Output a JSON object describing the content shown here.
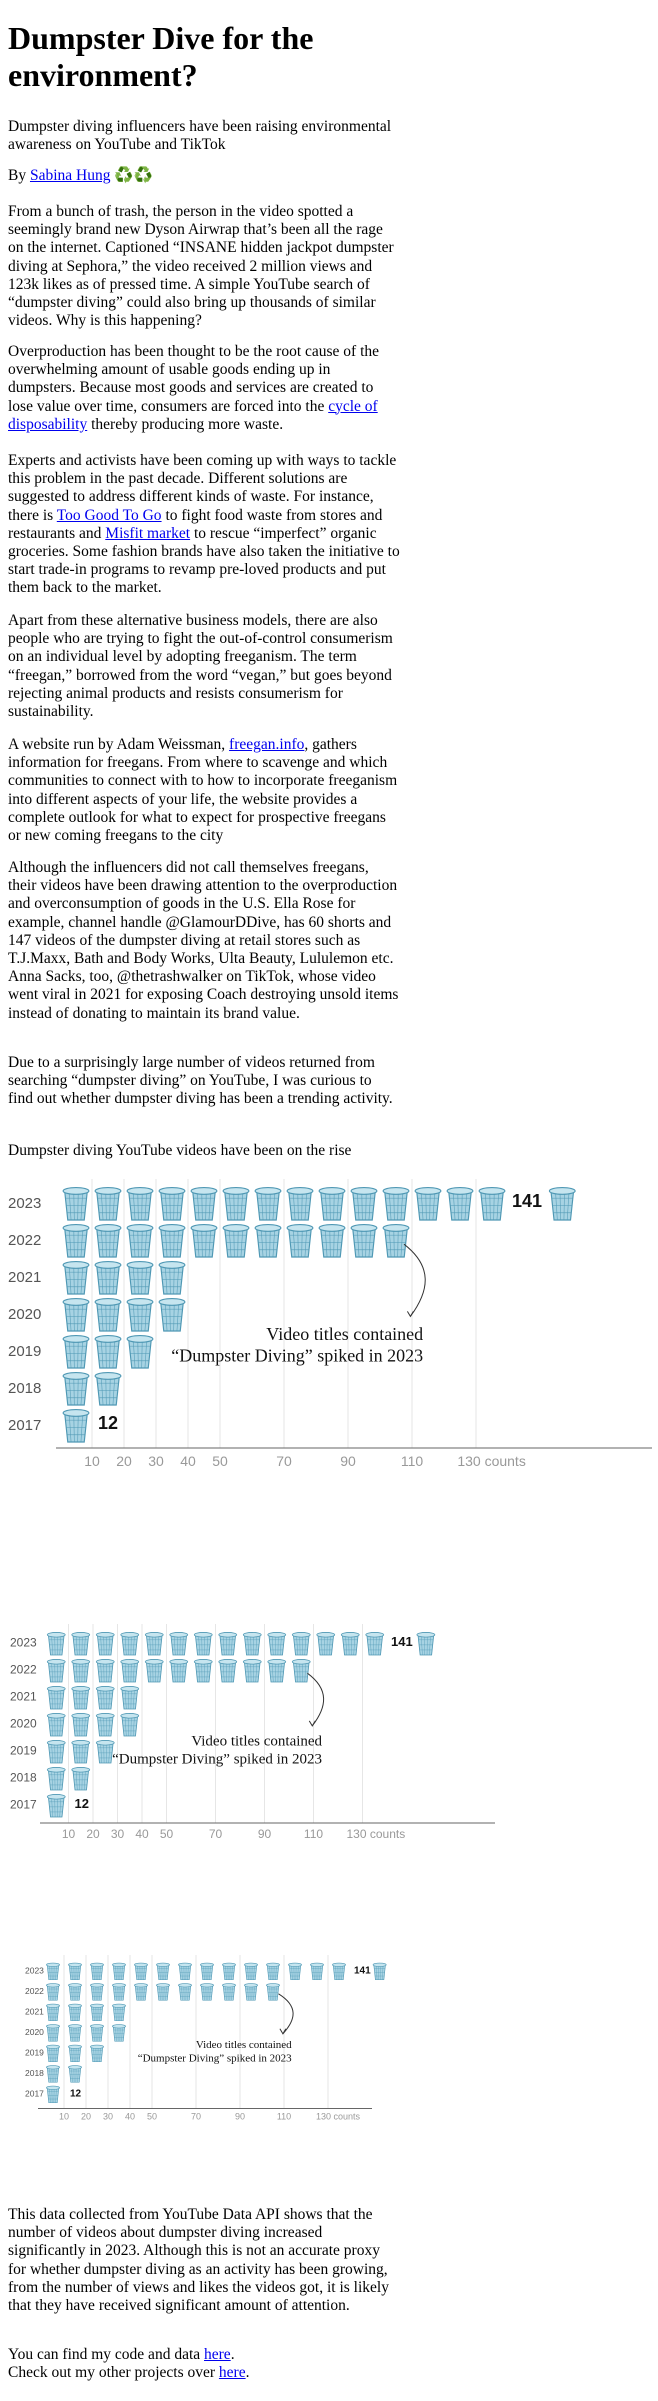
{
  "article": {
    "title": "Dumpster Dive for the environment?",
    "subtitle": "Dumpster diving influencers have been raising environmental awareness on YouTube and TikTok",
    "byline_prefix": "By",
    "author": "Sabina Hung",
    "author_emoji": "♻️♻️",
    "p1": "From a bunch of trash, the person in the video spotted a seemingly brand new Dyson Airwrap that’s been all the rage on the internet. Captioned “INSANE hidden jackpot dumpster diving at Sephora,” the video received 2 million views and 123k likes as of pressed time. A simple YouTube search of “dumpster diving” could also bring up thousands of similar videos. Why is this happening?",
    "p2_a": "Overproduction has been thought to be the root cause of the overwhelming amount of usable goods ending up in dumpsters. Because most goods and services are created to lose value over time, consumers are forced into the ",
    "p2_link": "cycle of disposability",
    "p2_b": " thereby producing more waste.",
    "p3_a": "Experts and activists have been coming up with ways to tackle this problem in the past decade. Different solutions are suggested to address different kinds of waste. For instance, there is ",
    "p3_link1": "Too Good To Go",
    "p3_b": " to fight food waste from stores and restaurants and ",
    "p3_link2": "Misfit market",
    "p3_c": " to rescue “imperfect” organic groceries. Some fashion brands have also taken the initiative to start trade-in programs to revamp pre-loved products and put them back to the market.",
    "p4": "Apart from these alternative business models, there are also people who are trying to fight the out-of-control consumerism on an individual level by adopting freeganism. The term “freegan,” borrowed from the word “vegan,” but goes beyond rejecting animal products and resists consumerism for sustainability.",
    "p5_a": "A website run by Adam Weissman, ",
    "p5_link": "freegan.info",
    "p5_b": ", gathers information for freegans. From where to scavenge and which communities to connect with to how to incorporate freeganism into different aspects of your life, the website provides a complete outlook for what to expect for prospective freegans or new coming freegans to the city",
    "p6": "Although the influencers did not call themselves freegans, their videos have been drawing attention to the overproduction and overconsumption of goods in the U.S. Ella Rose for example, channel handle @GlamourDDive, has 60 shorts and 147 videos of the dumpster diving at retail stores such as T.J.Maxx, Bath and Body Works, Ulta Beauty, Lululemon etc. Anna Sacks, too, @thetrashwalker on TikTok, whose video went viral in 2021 for exposing Coach destroying unsold items instead of donating to maintain its brand value.",
    "p7": "Due to a surprisingly large number of videos returned from searching “dumpster diving” on YouTube, I was curious to find out whether dumpster diving has been a trending activity.",
    "chart_heading": "Dumpster diving YouTube videos have been on the rise",
    "p8": "This data collected from YouTube Data API shows that the number of videos about dumpster diving increased significantly in 2023. Although this is not an accurate proxy for whether dumpster diving as an activity has been growing, from the number of views and likes the videos got, it is likely that they have received significant amount of attention.",
    "footer1_a": "You can find my code and data ",
    "footer1_link": "here",
    "footer1_b": ".",
    "footer2_a": "Check out my other projects over ",
    "footer2_link": "here",
    "footer2_b": "."
  },
  "chart_data": {
    "type": "bar",
    "mark": "trash-bin-icon",
    "categories": [
      "2023",
      "2022",
      "2021",
      "2020",
      "2019",
      "2018",
      "2017"
    ],
    "values": [
      141,
      110,
      40,
      40,
      30,
      20,
      12
    ],
    "icon_unit": 10,
    "value_labels": {
      "2023": "141",
      "2017": "12"
    },
    "x_ticks": [
      10,
      20,
      30,
      40,
      50,
      70,
      90,
      110,
      130
    ],
    "x_tick_labels": [
      "10",
      "20",
      "30",
      "40",
      "50",
      "70",
      "90",
      "110",
      "130 counts"
    ],
    "annotation_line1": "Video titles contained",
    "annotation_line2": "“Dumpster Diving” spiked in 2023",
    "grid": true,
    "colors": {
      "bin_fill": "#a7d3e3",
      "bin_stroke": "#4f98b4",
      "grid": "#e6e6e6",
      "axis": "#666666"
    }
  }
}
